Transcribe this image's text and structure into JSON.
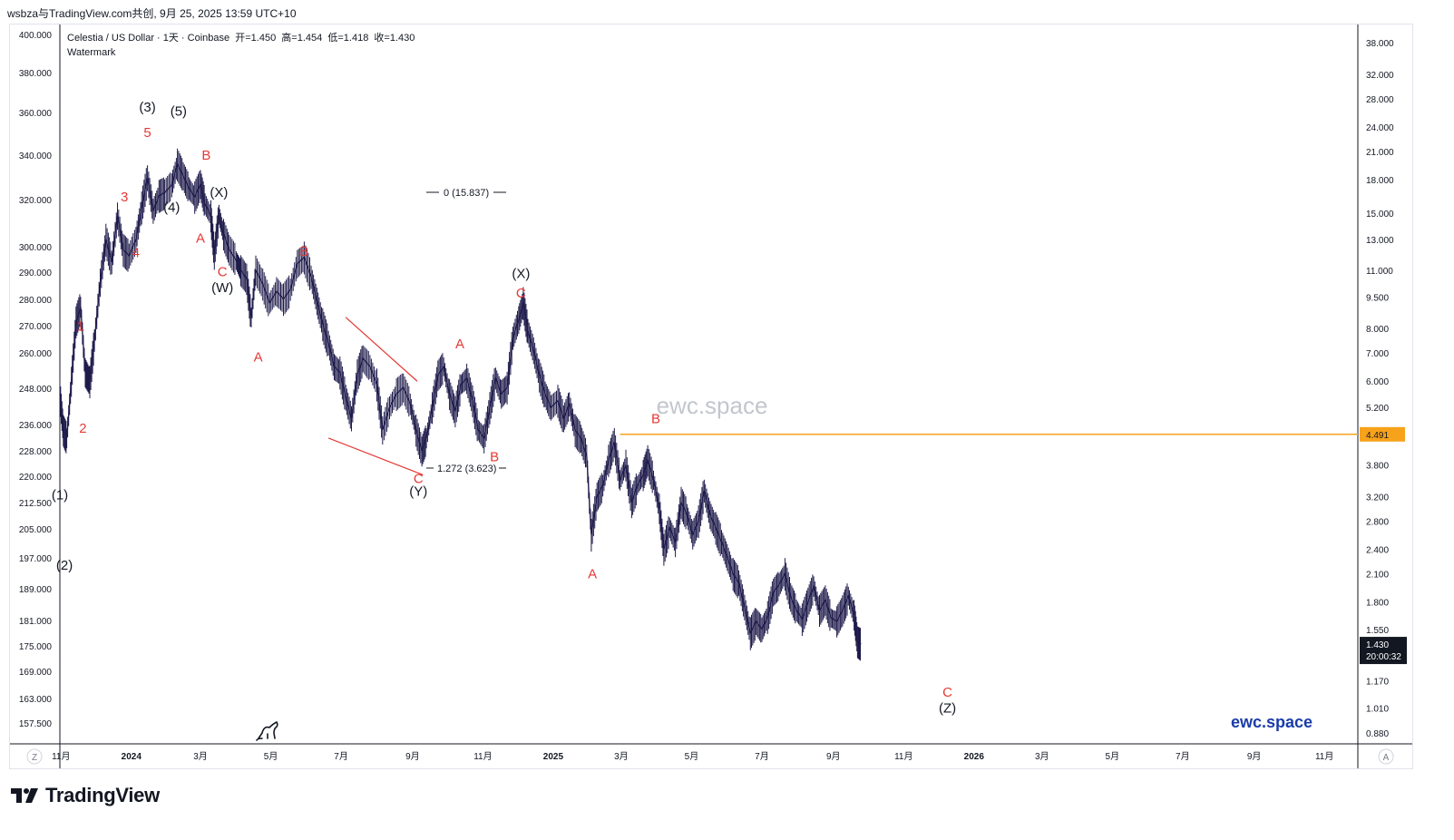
{
  "header": {
    "share_text": "wsbza与TradingView.com共创, 9月 25, 2025 13:59 UTC+10"
  },
  "chart_data": {
    "type": "candlestick",
    "symbol_line": "Celestia / US Dollar · 1天 · Coinbase  开=1.450  高=1.454  低=1.418  收=1.430",
    "watermark_label": "Watermark",
    "watermark_text": "ewc.space",
    "brand_text": "ewc.space",
    "left_axis_labels": [
      "400.000",
      "380.000",
      "360.000",
      "340.000",
      "320.000",
      "300.000",
      "290.000",
      "280.000",
      "270.000",
      "260.000",
      "248.000",
      "236.000",
      "228.000",
      "220.000",
      "212.500",
      "205.000",
      "197.000",
      "189.000",
      "181.000",
      "175.000",
      "169.000",
      "163.000",
      "157.500"
    ],
    "right_axis_labels": [
      "38.000",
      "32.000",
      "28.000",
      "24.000",
      "21.000",
      "18.000",
      "15.000",
      "13.000",
      "11.000",
      "9.500",
      "8.000",
      "7.000",
      "6.000",
      "5.200",
      "4.491",
      "3.800",
      "3.200",
      "2.800",
      "2.400",
      "2.100",
      "1.800",
      "1.550",
      "1.430",
      "1.170",
      "1.010",
      "0.880"
    ],
    "right_axis_scale": "log",
    "price_range": [
      0.83,
      42.0
    ],
    "x_axis_labels": [
      "11月",
      "2024",
      "3月",
      "5月",
      "7月",
      "9月",
      "11月",
      "2025",
      "3月",
      "5月",
      "7月",
      "9月",
      "11月",
      "2026",
      "3月",
      "5月",
      "7月",
      "9月",
      "11月"
    ],
    "x_range": [
      "2023-10-31",
      "2026-11-30"
    ],
    "horizontal_level": {
      "price": 4.491,
      "label": "4.491",
      "color": "#f7a21b"
    },
    "last_price": {
      "price": 1.43,
      "label": "1.430",
      "countdown": "20:00:32"
    },
    "fib_levels": [
      {
        "text": "0 (15.837)"
      },
      {
        "text": "1.272 (3.623)"
      }
    ],
    "series": [
      {
        "points": [
          [
            "2023-10-31",
            5.6
          ],
          [
            "2023-11-03",
            4.6
          ],
          [
            "2023-11-06",
            4.4
          ],
          [
            "2023-11-10",
            6.0
          ],
          [
            "2023-11-14",
            8.3
          ],
          [
            "2023-11-18",
            9.0
          ],
          [
            "2023-11-22",
            6.3
          ],
          [
            "2023-11-26",
            6.0
          ],
          [
            "2023-11-30",
            7.5
          ],
          [
            "2023-12-05",
            10.3
          ],
          [
            "2023-12-10",
            13.0
          ],
          [
            "2023-12-15",
            11.5
          ],
          [
            "2023-12-20",
            14.8
          ],
          [
            "2023-12-25",
            12.3
          ],
          [
            "2023-12-30",
            11.9
          ],
          [
            "2024-01-05",
            13.0
          ],
          [
            "2024-01-10",
            15.5
          ],
          [
            "2024-01-15",
            18.2
          ],
          [
            "2024-01-20",
            15.2
          ],
          [
            "2024-01-25",
            16.5
          ],
          [
            "2024-01-30",
            16.8
          ],
          [
            "2024-02-05",
            17.5
          ],
          [
            "2024-02-10",
            19.6
          ],
          [
            "2024-02-15",
            18.4
          ],
          [
            "2024-02-20",
            17.2
          ],
          [
            "2024-02-25",
            16.4
          ],
          [
            "2024-03-01",
            17.6
          ],
          [
            "2024-03-05",
            15.8
          ],
          [
            "2024-03-10",
            14.8
          ],
          [
            "2024-03-13",
            12.0
          ],
          [
            "2024-03-17",
            14.9
          ],
          [
            "2024-03-21",
            13.4
          ],
          [
            "2024-03-26",
            12.3
          ],
          [
            "2024-04-01",
            11.6
          ],
          [
            "2024-04-05",
            11.0
          ],
          [
            "2024-04-10",
            10.5
          ],
          [
            "2024-04-14",
            8.5
          ],
          [
            "2024-04-18",
            11.0
          ],
          [
            "2024-04-24",
            10.2
          ],
          [
            "2024-04-30",
            9.2
          ],
          [
            "2024-05-06",
            9.8
          ],
          [
            "2024-05-12",
            9.4
          ],
          [
            "2024-05-18",
            9.9
          ],
          [
            "2024-05-24",
            11.4
          ],
          [
            "2024-05-30",
            11.8
          ],
          [
            "2024-06-05",
            10.6
          ],
          [
            "2024-06-10",
            9.3
          ],
          [
            "2024-06-15",
            8.2
          ],
          [
            "2024-06-20",
            7.4
          ],
          [
            "2024-06-25",
            6.5
          ],
          [
            "2024-06-30",
            6.3
          ],
          [
            "2024-07-05",
            5.5
          ],
          [
            "2024-07-10",
            4.9
          ],
          [
            "2024-07-15",
            6.2
          ],
          [
            "2024-07-20",
            6.8
          ],
          [
            "2024-07-26",
            6.5
          ],
          [
            "2024-08-01",
            5.9
          ],
          [
            "2024-08-06",
            4.6
          ],
          [
            "2024-08-12",
            5.2
          ],
          [
            "2024-08-18",
            5.6
          ],
          [
            "2024-08-24",
            5.8
          ],
          [
            "2024-08-30",
            5.3
          ],
          [
            "2024-09-04",
            4.6
          ],
          [
            "2024-09-09",
            4.1
          ],
          [
            "2024-09-13",
            4.4
          ],
          [
            "2024-09-18",
            5.2
          ],
          [
            "2024-09-23",
            6.2
          ],
          [
            "2024-09-28",
            6.5
          ],
          [
            "2024-10-03",
            5.6
          ],
          [
            "2024-10-08",
            5.1
          ],
          [
            "2024-10-13",
            5.9
          ],
          [
            "2024-10-18",
            6.1
          ],
          [
            "2024-10-23",
            5.4
          ],
          [
            "2024-10-28",
            4.6
          ],
          [
            "2024-11-02",
            4.4
          ],
          [
            "2024-11-07",
            5.2
          ],
          [
            "2024-11-12",
            6.1
          ],
          [
            "2024-11-17",
            5.6
          ],
          [
            "2024-11-22",
            5.8
          ],
          [
            "2024-11-27",
            7.6
          ],
          [
            "2024-12-02",
            8.4
          ],
          [
            "2024-12-06",
            9.2
          ],
          [
            "2024-12-10",
            7.9
          ],
          [
            "2024-12-15",
            7.1
          ],
          [
            "2024-12-20",
            6.2
          ],
          [
            "2024-12-25",
            5.6
          ],
          [
            "2024-12-30",
            5.2
          ],
          [
            "2025-01-05",
            5.4
          ],
          [
            "2025-01-10",
            4.9
          ],
          [
            "2025-01-15",
            5.3
          ],
          [
            "2025-01-20",
            4.6
          ],
          [
            "2025-01-25",
            4.4
          ],
          [
            "2025-01-30",
            4.0
          ],
          [
            "2025-02-03",
            2.6
          ],
          [
            "2025-02-08",
            3.2
          ],
          [
            "2025-02-13",
            3.4
          ],
          [
            "2025-02-18",
            3.9
          ],
          [
            "2025-02-23",
            4.3
          ],
          [
            "2025-02-28",
            3.5
          ],
          [
            "2025-03-05",
            3.8
          ],
          [
            "2025-03-10",
            3.1
          ],
          [
            "2025-03-15",
            3.4
          ],
          [
            "2025-03-20",
            3.6
          ],
          [
            "2025-03-24",
            3.9
          ],
          [
            "2025-03-29",
            3.5
          ],
          [
            "2025-04-03",
            3.0
          ],
          [
            "2025-04-07",
            2.4
          ],
          [
            "2025-04-12",
            2.7
          ],
          [
            "2025-04-17",
            2.5
          ],
          [
            "2025-04-22",
            3.1
          ],
          [
            "2025-04-27",
            2.9
          ],
          [
            "2025-05-02",
            2.6
          ],
          [
            "2025-05-07",
            2.8
          ],
          [
            "2025-05-12",
            3.3
          ],
          [
            "2025-05-17",
            2.9
          ],
          [
            "2025-05-22",
            2.7
          ],
          [
            "2025-05-27",
            2.5
          ],
          [
            "2025-06-01",
            2.3
          ],
          [
            "2025-06-06",
            2.1
          ],
          [
            "2025-06-11",
            2.0
          ],
          [
            "2025-06-16",
            1.75
          ],
          [
            "2025-06-21",
            1.52
          ],
          [
            "2025-06-26",
            1.62
          ],
          [
            "2025-07-01",
            1.55
          ],
          [
            "2025-07-06",
            1.66
          ],
          [
            "2025-07-11",
            1.9
          ],
          [
            "2025-07-16",
            1.98
          ],
          [
            "2025-07-21",
            2.1
          ],
          [
            "2025-07-26",
            1.85
          ],
          [
            "2025-07-31",
            1.72
          ],
          [
            "2025-08-05",
            1.64
          ],
          [
            "2025-08-10",
            1.8
          ],
          [
            "2025-08-15",
            1.96
          ],
          [
            "2025-08-20",
            1.72
          ],
          [
            "2025-08-25",
            1.82
          ],
          [
            "2025-08-30",
            1.65
          ],
          [
            "2025-09-04",
            1.62
          ],
          [
            "2025-09-09",
            1.72
          ],
          [
            "2025-09-14",
            1.86
          ],
          [
            "2025-09-19",
            1.68
          ],
          [
            "2025-09-22",
            1.45
          ],
          [
            "2025-09-25",
            1.43
          ]
        ]
      }
    ],
    "trendlines": [
      {
        "from": [
          "2024-07-05",
          8.5
        ],
        "to": [
          "2024-09-05",
          6.0
        ],
        "color": "#e53935"
      },
      {
        "from": [
          "2024-06-20",
          4.4
        ],
        "to": [
          "2024-09-10",
          3.6
        ],
        "color": "#e53935"
      }
    ],
    "annotations": [
      {
        "text": "(3)",
        "date": "2024-01-15",
        "price": 26.8,
        "color": "#131722"
      },
      {
        "text": "(5)",
        "date": "2024-02-11",
        "price": 26.2,
        "color": "#131722"
      },
      {
        "text": "5",
        "date": "2024-01-15",
        "price": 23.3,
        "color": "#e53935"
      },
      {
        "text": "B",
        "date": "2024-03-06",
        "price": 20.6,
        "color": "#e53935"
      },
      {
        "text": "(X)",
        "date": "2024-03-17",
        "price": 16.8,
        "color": "#131722"
      },
      {
        "text": "3",
        "date": "2023-12-26",
        "price": 16.4,
        "color": "#e53935"
      },
      {
        "text": "(4)",
        "date": "2024-02-05",
        "price": 15.5,
        "color": "#131722"
      },
      {
        "text": "A",
        "date": "2024-03-01",
        "price": 13.1,
        "color": "#e53935"
      },
      {
        "text": "4",
        "date": "2024-01-05",
        "price": 12.1,
        "color": "#e53935"
      },
      {
        "text": "B",
        "date": "2024-05-30",
        "price": 12.2,
        "color": "#e53935"
      },
      {
        "text": "C",
        "date": "2024-03-20",
        "price": 10.9,
        "color": "#e53935"
      },
      {
        "text": "(W)",
        "date": "2024-03-20",
        "price": 10.0,
        "color": "#131722"
      },
      {
        "text": "(X)",
        "date": "2024-12-04",
        "price": 10.8,
        "color": "#131722"
      },
      {
        "text": "C",
        "date": "2024-12-04",
        "price": 9.72,
        "color": "#e53935"
      },
      {
        "text": "1",
        "date": "2023-11-18",
        "price": 8.1,
        "color": "#e53935"
      },
      {
        "text": "A",
        "date": "2024-10-12",
        "price": 7.35,
        "color": "#e53935"
      },
      {
        "text": "A",
        "date": "2024-04-20",
        "price": 6.85,
        "color": "#e53935"
      },
      {
        "text": "B",
        "date": "2025-03-31",
        "price": 4.89,
        "color": "#e53935"
      },
      {
        "text": "2",
        "date": "2023-11-20",
        "price": 4.65,
        "color": "#e53935"
      },
      {
        "text": "B",
        "date": "2024-11-11",
        "price": 3.97,
        "color": "#e53935"
      },
      {
        "text": "C",
        "date": "2024-09-06",
        "price": 3.53,
        "color": "#e53935"
      },
      {
        "text": "(Y)",
        "date": "2024-09-06",
        "price": 3.29,
        "color": "#131722"
      },
      {
        "text": "(1)",
        "date": "2023-10-31",
        "price": 3.23,
        "color": "#131722"
      },
      {
        "text": "A",
        "date": "2025-02-04",
        "price": 2.1,
        "color": "#e53935"
      },
      {
        "text": "(2)",
        "date": "2023-11-04",
        "price": 2.2,
        "color": "#131722"
      },
      {
        "text": "C",
        "date": "2025-12-09",
        "price": 1.1,
        "color": "#e53935"
      },
      {
        "text": "(Z)",
        "date": "2025-12-09",
        "price": 1.01,
        "color": "#131722"
      }
    ]
  },
  "footer": {
    "brand": "TradingView"
  },
  "corner_labels": {
    "bottom_left": "Z",
    "bottom_right": "A"
  }
}
